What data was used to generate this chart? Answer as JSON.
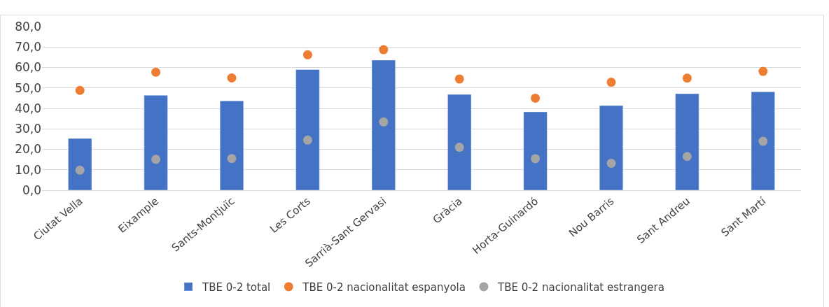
{
  "chart_data": {
    "type": "bar",
    "categories": [
      "Ciutat Vella",
      "Eixample",
      "Sants-Montjuïc",
      "Les Corts",
      "Sarrià-Sant Gervasi",
      "Gràcia",
      "Horta-Guinardó",
      "Nou Barris",
      "Sant Andreu",
      "Sant Martí"
    ],
    "series": [
      {
        "name": "TBE 0-2 total",
        "color": "#4472c4",
        "values": [
          25.3,
          46.4,
          43.7,
          59.0,
          63.6,
          46.8,
          38.3,
          41.4,
          47.2,
          48.1
        ]
      },
      {
        "name": "TBE 0-2 nacionalitat espanyola",
        "type": "scatter",
        "color": "#ed7d31",
        "values": [
          48.8,
          57.7,
          54.9,
          66.2,
          68.7,
          54.4,
          45.0,
          52.8,
          54.8,
          58.1
        ]
      },
      {
        "name": "TBE 0-2 nacionalitat estrangera",
        "type": "scatter",
        "color": "#a5a5a5",
        "values": [
          9.8,
          15.1,
          15.5,
          24.5,
          33.4,
          21.0,
          15.4,
          13.2,
          16.5,
          23.9
        ]
      }
    ],
    "ylim": [
      0,
      80
    ],
    "yticks": [
      {
        "value": 0,
        "label": "0,0"
      },
      {
        "value": 10,
        "label": "10,0"
      },
      {
        "value": 20,
        "label": "20,0"
      },
      {
        "value": 30,
        "label": "30,0"
      },
      {
        "value": 40,
        "label": "40,0"
      },
      {
        "value": 50,
        "label": "50,0"
      },
      {
        "value": 60,
        "label": "60,0"
      },
      {
        "value": 70,
        "label": "70,0"
      },
      {
        "value": 80,
        "label": "80,0"
      }
    ],
    "grid": "y",
    "legend": "bottom",
    "marker": "circle"
  }
}
